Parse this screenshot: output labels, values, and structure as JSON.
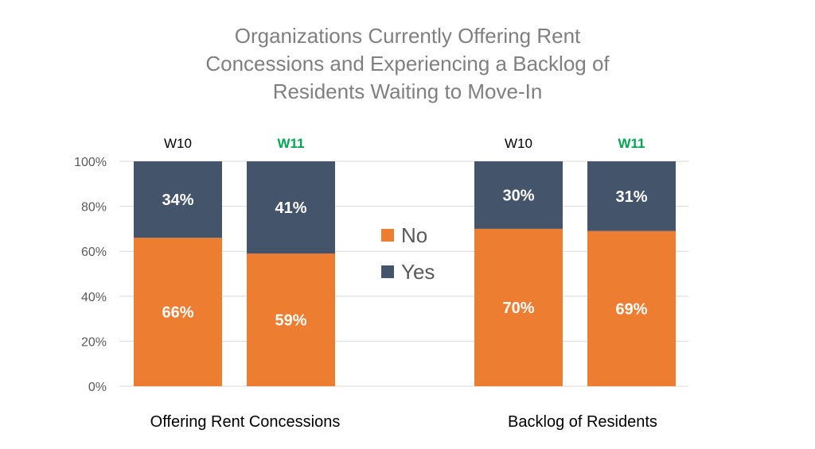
{
  "chart_data": {
    "type": "bar",
    "stacked": true,
    "title_lines": [
      "Organizations Currently Offering Rent",
      "Concessions and Experiencing a Backlog of",
      "Residents Waiting to Move-In"
    ],
    "groups": [
      {
        "name": "Offering Rent Concessions",
        "bars": [
          {
            "label": "W10",
            "no": 66,
            "yes": 34,
            "no_label": "66%",
            "yes_label": "34%"
          },
          {
            "label": "W11",
            "no": 59,
            "yes": 41,
            "no_label": "59%",
            "yes_label": "41%"
          }
        ]
      },
      {
        "name": "Backlog of Residents",
        "bars": [
          {
            "label": "W10",
            "no": 70,
            "yes": 30,
            "no_label": "70%",
            "yes_label": "30%"
          },
          {
            "label": "W11",
            "no": 69,
            "yes": 31,
            "no_label": "69%",
            "yes_label": "31%"
          }
        ]
      }
    ],
    "series": [
      {
        "name": "No",
        "color": "#ed7d31"
      },
      {
        "name": "Yes",
        "color": "#44546a"
      }
    ],
    "bar_label_colors": {
      "W10": "#000000",
      "W11": "#00a651"
    },
    "ylim": [
      0,
      100
    ],
    "yticks": [
      "0%",
      "20%",
      "40%",
      "60%",
      "80%",
      "100%"
    ],
    "grid": true,
    "legend_position": "center"
  }
}
